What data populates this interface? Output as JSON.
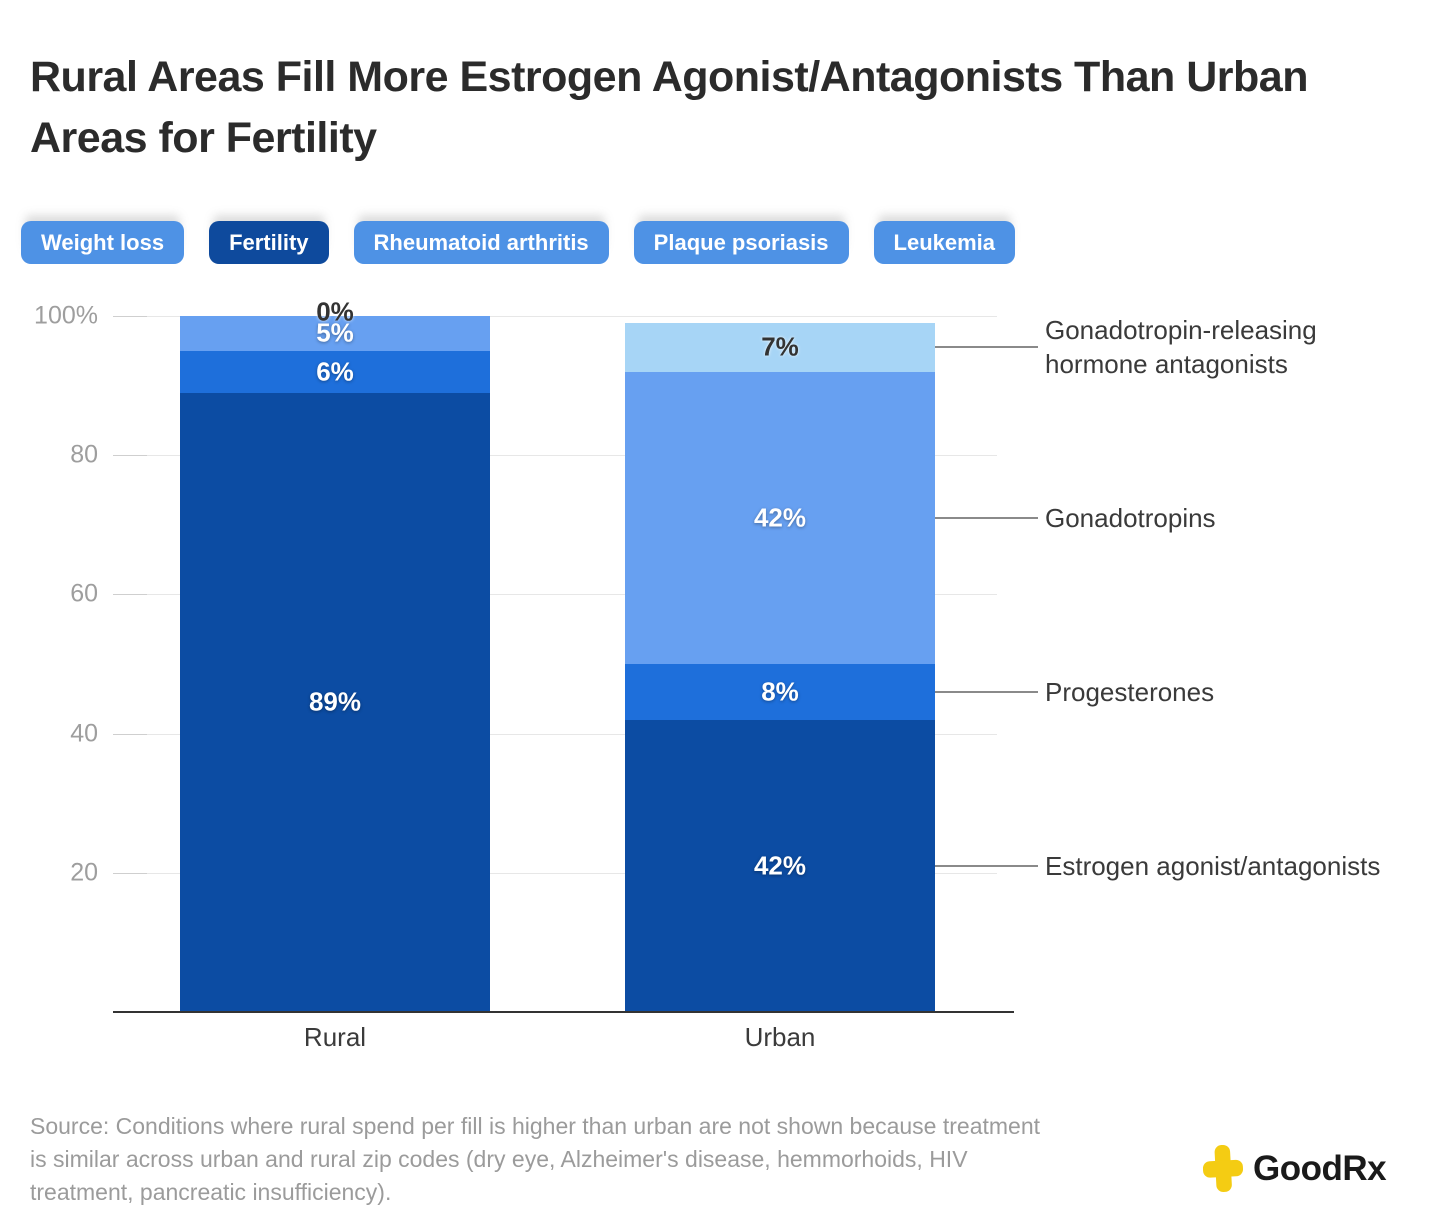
{
  "title": "Rural Areas Fill More Estrogen Agonist/Antagonists Than Urban Areas for Fertility",
  "tabs": [
    {
      "label": "Weight loss",
      "active": false
    },
    {
      "label": "Fertility",
      "active": true
    },
    {
      "label": "Rheumatoid arthritis",
      "active": false
    },
    {
      "label": "Plaque psoriasis",
      "active": false
    },
    {
      "label": "Leukemia",
      "active": false
    }
  ],
  "theme": {
    "tab_active_bg": "#0E4A9D",
    "tab_inactive_bg": "#4E92E5",
    "tab_text": "#FFFFFF",
    "axis_line": "#333333",
    "gridline": "#E7E7E7",
    "grid_tick": "#CFCFCF",
    "ytick_text": "#9E9E9E",
    "xtick_text": "#3B3B3B",
    "annotation_text": "#3A3A3A",
    "connector": "#8A8A8A",
    "zero_label_color": "#333333",
    "source_text": "#9B9B9B",
    "logo_yellow": "#F4CC13",
    "logo_text_color": "#1A1A1A"
  },
  "chart_data": {
    "type": "bar",
    "stacked": true,
    "categories": [
      "Rural",
      "Urban"
    ],
    "series": [
      {
        "name": "Estrogen agonist/antagonists",
        "values": [
          89,
          42
        ],
        "color": "#0C4CA3",
        "label_color": "#FFFFFF"
      },
      {
        "name": "Progesterones",
        "values": [
          6,
          8
        ],
        "color": "#1E6FDB",
        "label_color": "#FFFFFF"
      },
      {
        "name": "Gonadotropins",
        "values": [
          5,
          42
        ],
        "color": "#67A0F1",
        "label_color": "#FFFFFF"
      },
      {
        "name": "Gonadotropin-releasing hormone antagonists",
        "values": [
          0,
          7
        ],
        "color": "#A7D5F6",
        "label_color": "#333333"
      }
    ],
    "value_suffix": "%",
    "ylim": [
      0,
      100
    ],
    "yticks": [
      {
        "label": "100%",
        "value": 100
      },
      {
        "label": "80",
        "value": 80
      },
      {
        "label": "60",
        "value": 60
      },
      {
        "label": "40",
        "value": 40
      },
      {
        "label": "20",
        "value": 20
      }
    ],
    "grid": true,
    "legend_position": "right-annotations"
  },
  "source": {
    "lines": [
      "Source: Conditions where rural spend per fill is higher than urban are not shown because treatment",
      "is similar across urban and rural zip codes (dry eye, Alzheimer's disease, hemmorhoids, HIV",
      "treatment, pancreatic insufficiency)."
    ]
  },
  "logo": {
    "text": "GoodRx",
    "icon": "plus-icon"
  }
}
